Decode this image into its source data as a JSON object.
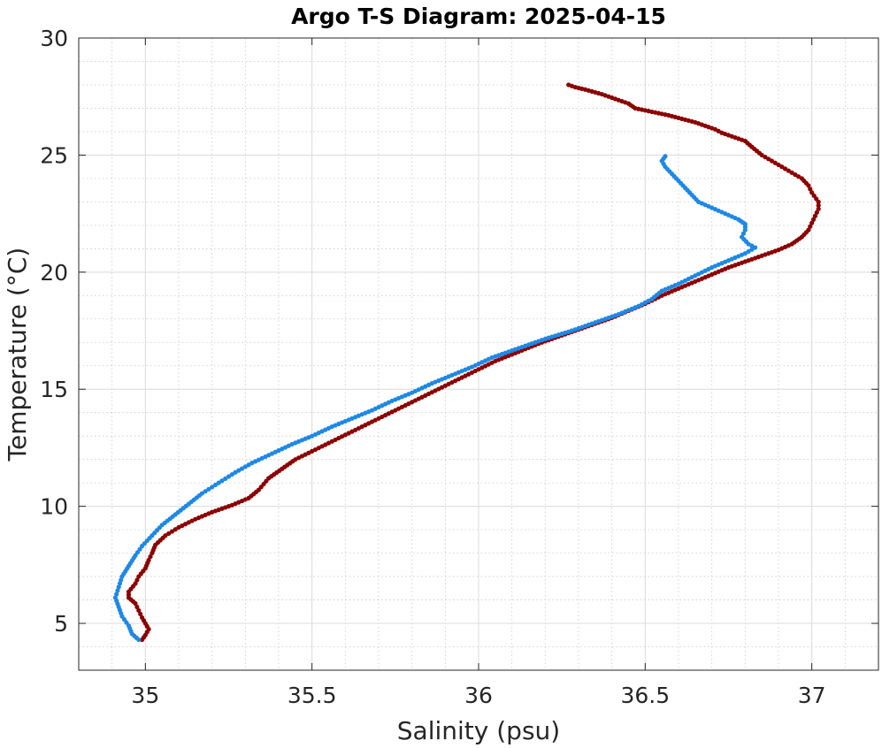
{
  "chart_data": {
    "type": "scatter",
    "title": "Argo T-S Diagram: 2025-04-15",
    "xlabel": "Salinity (psu)",
    "ylabel": "Temperature (°C)",
    "xlim": [
      34.8,
      37.2
    ],
    "ylim": [
      3,
      30
    ],
    "xticks": [
      35,
      35.5,
      36,
      36.5,
      37
    ],
    "xtick_labels": [
      "35",
      "35.5",
      "36",
      "36.5",
      "37"
    ],
    "yticks": [
      5,
      10,
      15,
      20,
      25,
      30
    ],
    "ytick_labels": [
      "5",
      "10",
      "15",
      "20",
      "25",
      "30"
    ],
    "grid": true,
    "minor_grid": true,
    "legend": "none",
    "series": [
      {
        "color": "#8b0000",
        "points": [
          [
            36.27,
            28.0
          ],
          [
            36.29,
            27.9
          ],
          [
            36.32,
            27.8
          ],
          [
            36.37,
            27.6
          ],
          [
            36.41,
            27.4
          ],
          [
            36.45,
            27.2
          ],
          [
            36.47,
            27.0
          ],
          [
            36.52,
            26.85
          ],
          [
            36.57,
            26.7
          ],
          [
            36.61,
            26.55
          ],
          [
            36.65,
            26.4
          ],
          [
            36.68,
            26.25
          ],
          [
            36.71,
            26.1
          ],
          [
            36.73,
            25.95
          ],
          [
            36.76,
            25.8
          ],
          [
            36.78,
            25.7
          ],
          [
            36.8,
            25.6
          ],
          [
            36.82,
            25.35
          ],
          [
            36.85,
            25.0
          ],
          [
            36.88,
            24.75
          ],
          [
            36.91,
            24.5
          ],
          [
            36.94,
            24.25
          ],
          [
            36.97,
            24.0
          ],
          [
            36.99,
            23.7
          ],
          [
            37.0,
            23.4
          ],
          [
            37.02,
            23.0
          ],
          [
            37.02,
            22.7
          ],
          [
            37.01,
            22.4
          ],
          [
            37.0,
            22.1
          ],
          [
            36.99,
            21.8
          ],
          [
            36.97,
            21.5
          ],
          [
            36.94,
            21.2
          ],
          [
            36.9,
            20.95
          ],
          [
            36.85,
            20.7
          ],
          [
            36.8,
            20.45
          ],
          [
            36.75,
            20.2
          ],
          [
            36.7,
            19.9
          ],
          [
            36.65,
            19.6
          ],
          [
            36.6,
            19.3
          ],
          [
            36.55,
            19.0
          ],
          [
            36.5,
            18.65
          ],
          [
            36.45,
            18.35
          ],
          [
            36.4,
            18.05
          ],
          [
            36.33,
            17.7
          ],
          [
            36.26,
            17.35
          ],
          [
            36.19,
            17.0
          ],
          [
            36.12,
            16.6
          ],
          [
            36.05,
            16.2
          ],
          [
            36.0,
            15.85
          ],
          [
            35.95,
            15.5
          ],
          [
            35.9,
            15.15
          ],
          [
            35.85,
            14.8
          ],
          [
            35.8,
            14.45
          ],
          [
            35.75,
            14.1
          ],
          [
            35.7,
            13.75
          ],
          [
            35.65,
            13.4
          ],
          [
            35.6,
            13.05
          ],
          [
            35.55,
            12.7
          ],
          [
            35.5,
            12.35
          ],
          [
            35.45,
            12.0
          ],
          [
            35.41,
            11.6
          ],
          [
            35.37,
            11.2
          ],
          [
            35.34,
            10.7
          ],
          [
            35.31,
            10.35
          ],
          [
            35.26,
            10.05
          ],
          [
            35.2,
            9.75
          ],
          [
            35.15,
            9.45
          ],
          [
            35.1,
            9.1
          ],
          [
            35.06,
            8.75
          ],
          [
            35.03,
            8.35
          ],
          [
            35.02,
            8.0
          ],
          [
            35.01,
            7.7
          ],
          [
            35.0,
            7.35
          ],
          [
            34.98,
            7.0
          ],
          [
            34.97,
            6.7
          ],
          [
            34.95,
            6.35
          ],
          [
            34.95,
            6.1
          ],
          [
            34.97,
            5.85
          ],
          [
            34.98,
            5.55
          ],
          [
            34.99,
            5.25
          ],
          [
            35.0,
            5.0
          ],
          [
            35.01,
            4.75
          ],
          [
            35.0,
            4.5
          ],
          [
            34.99,
            4.3
          ]
        ]
      },
      {
        "color": "#1e88e5",
        "points": [
          [
            36.56,
            24.95
          ],
          [
            36.55,
            24.75
          ],
          [
            36.56,
            24.5
          ],
          [
            36.58,
            24.2
          ],
          [
            36.6,
            23.9
          ],
          [
            36.62,
            23.6
          ],
          [
            36.64,
            23.3
          ],
          [
            36.66,
            23.0
          ],
          [
            36.7,
            22.75
          ],
          [
            36.74,
            22.5
          ],
          [
            36.78,
            22.25
          ],
          [
            36.8,
            22.05
          ],
          [
            36.8,
            21.8
          ],
          [
            36.79,
            21.5
          ],
          [
            36.81,
            21.2
          ],
          [
            36.83,
            21.05
          ],
          [
            36.8,
            20.8
          ],
          [
            36.75,
            20.5
          ],
          [
            36.7,
            20.2
          ],
          [
            36.65,
            19.85
          ],
          [
            36.6,
            19.5
          ],
          [
            36.55,
            19.2
          ],
          [
            36.52,
            18.85
          ],
          [
            36.48,
            18.55
          ],
          [
            36.42,
            18.2
          ],
          [
            36.35,
            17.85
          ],
          [
            36.28,
            17.5
          ],
          [
            36.2,
            17.15
          ],
          [
            36.12,
            16.75
          ],
          [
            36.04,
            16.35
          ],
          [
            35.98,
            15.95
          ],
          [
            35.92,
            15.6
          ],
          [
            35.86,
            15.25
          ],
          [
            35.8,
            14.85
          ],
          [
            35.74,
            14.5
          ],
          [
            35.68,
            14.1
          ],
          [
            35.62,
            13.75
          ],
          [
            35.56,
            13.4
          ],
          [
            35.5,
            13.0
          ],
          [
            35.44,
            12.65
          ],
          [
            35.38,
            12.25
          ],
          [
            35.32,
            11.85
          ],
          [
            35.27,
            11.45
          ],
          [
            35.22,
            11.0
          ],
          [
            35.17,
            10.55
          ],
          [
            35.13,
            10.1
          ],
          [
            35.09,
            9.65
          ],
          [
            35.05,
            9.2
          ],
          [
            35.02,
            8.75
          ],
          [
            34.99,
            8.3
          ],
          [
            34.97,
            7.9
          ],
          [
            34.95,
            7.45
          ],
          [
            34.93,
            7.0
          ],
          [
            34.92,
            6.55
          ],
          [
            34.91,
            6.1
          ],
          [
            34.92,
            5.7
          ],
          [
            34.93,
            5.3
          ],
          [
            34.95,
            4.9
          ],
          [
            34.96,
            4.55
          ],
          [
            34.98,
            4.3
          ]
        ]
      }
    ]
  }
}
